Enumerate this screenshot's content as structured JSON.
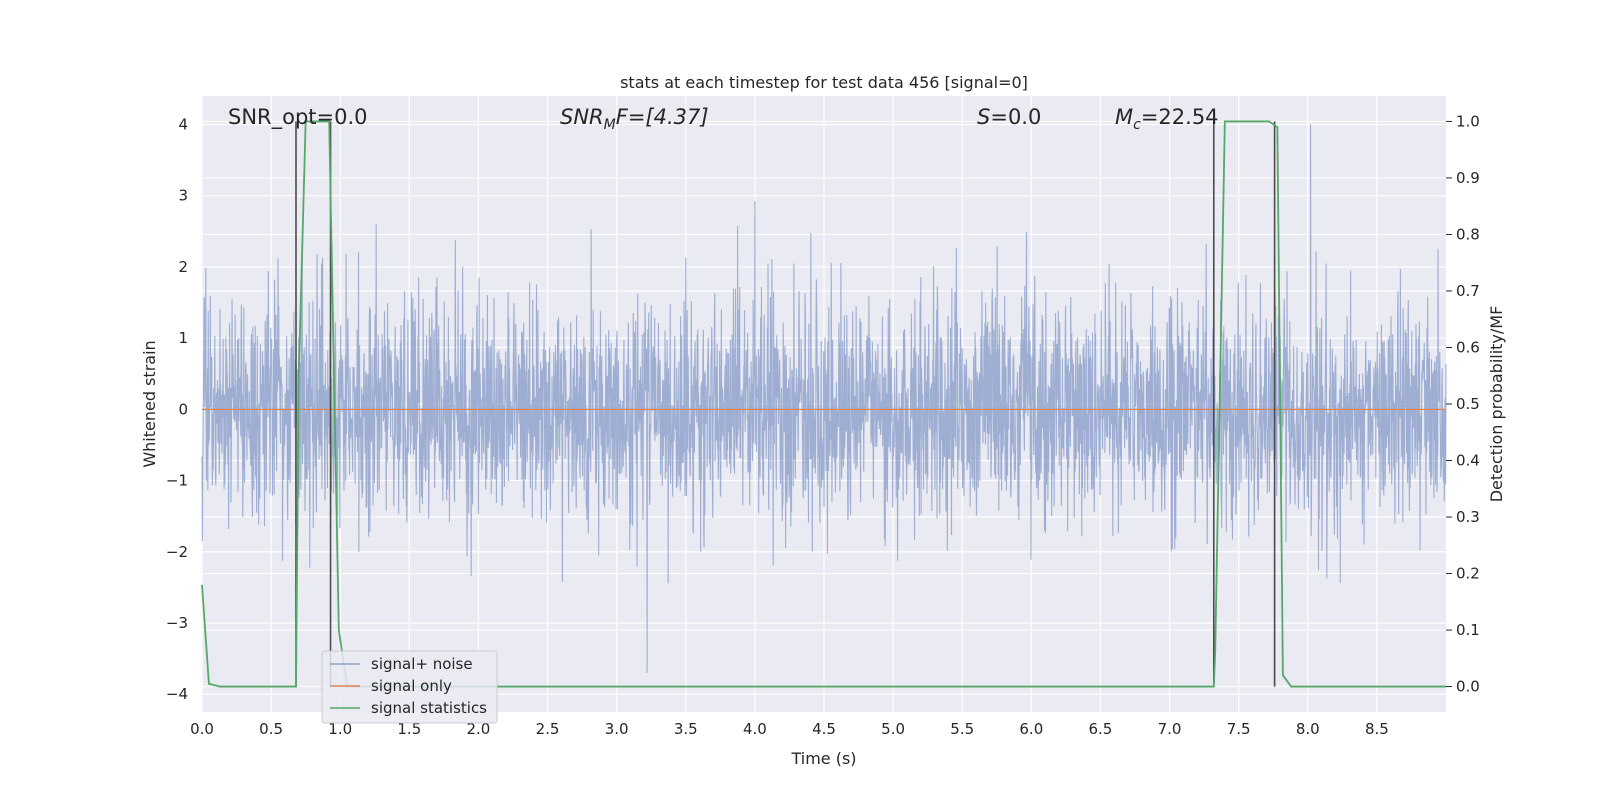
{
  "chart_data": {
    "type": "line",
    "title": "stats at each timestep for test data 456 [signal=0]",
    "xlabel": "Time (s)",
    "ylabel_left": "Whitened strain",
    "ylabel_right": "Detection probability/MF",
    "xlim": [
      0.0,
      9.0
    ],
    "ylim_left": [
      -4.25,
      4.4
    ],
    "ylim_right": [
      -0.045,
      1.045
    ],
    "x_ticks": [
      "0.0",
      "0.5",
      "1.0",
      "1.5",
      "2.0",
      "2.5",
      "3.0",
      "3.5",
      "4.0",
      "4.5",
      "5.0",
      "5.5",
      "6.0",
      "6.5",
      "7.0",
      "7.5",
      "8.0",
      "8.5"
    ],
    "y_ticks_left": [
      "4",
      "3",
      "2",
      "1",
      "0",
      "−1",
      "−2",
      "−3",
      "−4"
    ],
    "y_ticks_right": [
      "1.0",
      "0.9",
      "0.8",
      "0.7",
      "0.6",
      "0.5",
      "0.4",
      "0.3",
      "0.2",
      "0.1",
      "0.0"
    ],
    "grid": true,
    "legend_position": "lower-left",
    "annotations": {
      "snr_opt": "SNR_opt=0.0",
      "snr_mf_sym": "SNR",
      "snr_mf_sub": "M",
      "snr_mf_rest": "F=[4.37]",
      "s_sym": "S",
      "s_rest": "=0.0",
      "mc_sym": "M",
      "mc_sub": "c",
      "mc_rest": "=22.54"
    },
    "series": [
      {
        "name": "signal+ noise",
        "color": "#8fa3cc",
        "axis": "left",
        "description_level": "dense noise ~N(0,0.75), peaks to about 4.0 near t=8.02 and -3.7 near t=3.22"
      },
      {
        "name": "signal only",
        "color": "#dd8452",
        "axis": "left",
        "x": [
          0.0,
          9.0
        ],
        "y": [
          0.0,
          0.0
        ]
      },
      {
        "name": "signal statistics",
        "color": "#55a868",
        "axis": "right",
        "x": [
          0.0,
          0.05,
          0.13,
          0.68,
          0.7,
          0.75,
          0.92,
          0.99,
          1.05,
          7.32,
          7.33,
          7.4,
          7.72,
          7.78,
          7.82,
          7.88,
          9.0
        ],
        "y": [
          0.18,
          0.005,
          0.0,
          0.0,
          0.55,
          1.0,
          1.0,
          0.1,
          0.0,
          0.0,
          0.06,
          1.0,
          1.0,
          0.99,
          0.02,
          0.0,
          0.0
        ]
      },
      {
        "name": "",
        "color": "#4c4c4c",
        "axis": "right",
        "vlines_x": [
          0.68,
          0.93,
          7.32,
          7.76
        ],
        "vlines_y": [
          0.0,
          1.0
        ]
      }
    ]
  }
}
